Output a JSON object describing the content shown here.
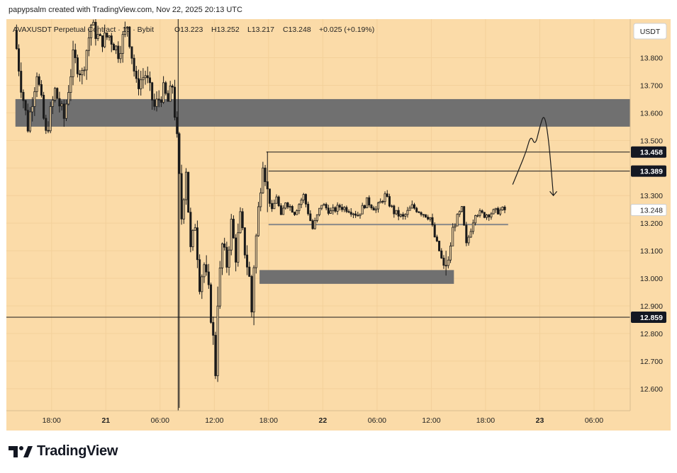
{
  "header": {
    "attribution": "papypsalm created with TradingView.com, Nov 22, 2025 20:13 UTC"
  },
  "legend": {
    "symbol": "AVAXUSDT Perpetual Contract · 15 · Bybit",
    "open": "O13.223",
    "high": "H13.252",
    "low": "L13.217",
    "close": "C13.248",
    "change": "+0.025 (+0.19%)"
  },
  "footer": {
    "brand": "TradingView",
    "logo_icon": "tradingview-logo-icon"
  },
  "colors": {
    "background": "#fbdba8",
    "candle": "#1a1a1a",
    "zone": "#707070",
    "level_line": "#8a8a8a",
    "badge_dark": "#131722",
    "badge_light": "#ffffff"
  },
  "chart_data": {
    "type": "candlestick",
    "currency_label": "USDT",
    "y_ticks": [
      12.6,
      12.7,
      12.8,
      12.9,
      13.0,
      13.1,
      13.2,
      13.3,
      13.4,
      13.5,
      13.6,
      13.7,
      13.8
    ],
    "ylim": [
      12.52,
      13.94
    ],
    "x_time_range": [
      "2025-11-20T13:00",
      "2025-11-23T10:00"
    ],
    "x_ticks": [
      {
        "label": "18:00",
        "time": "2025-11-20T18:00"
      },
      {
        "label": "21",
        "time": "2025-11-21T00:00",
        "bold": true
      },
      {
        "label": "06:00",
        "time": "2025-11-21T06:00"
      },
      {
        "label": "12:00",
        "time": "2025-11-21T12:00"
      },
      {
        "label": "18:00",
        "time": "2025-11-21T18:00"
      },
      {
        "label": "22",
        "time": "2025-11-22T00:00",
        "bold": true
      },
      {
        "label": "06:00",
        "time": "2025-11-22T06:00"
      },
      {
        "label": "12:00",
        "time": "2025-11-22T12:00"
      },
      {
        "label": "18:00",
        "time": "2025-11-22T18:00"
      },
      {
        "label": "23",
        "time": "2025-11-23T00:00",
        "bold": true
      },
      {
        "label": "06:00",
        "time": "2025-11-23T06:00"
      }
    ],
    "price_path": [
      [
        "2025-11-20T14:00",
        13.9
      ],
      [
        "2025-11-20T14:45",
        13.7
      ],
      [
        "2025-11-20T15:30",
        13.55
      ],
      [
        "2025-11-20T16:30",
        13.75
      ],
      [
        "2025-11-20T17:30",
        13.52
      ],
      [
        "2025-11-20T18:30",
        13.68
      ],
      [
        "2025-11-20T19:30",
        13.58
      ],
      [
        "2025-11-20T20:30",
        13.8
      ],
      [
        "2025-11-20T21:30",
        13.74
      ],
      [
        "2025-11-20T22:30",
        13.92
      ],
      [
        "2025-11-20T23:30",
        13.86
      ],
      [
        "2025-11-21T00:30",
        13.88
      ],
      [
        "2025-11-21T01:30",
        13.82
      ],
      [
        "2025-11-21T02:30",
        13.92
      ],
      [
        "2025-11-21T03:30",
        13.7
      ],
      [
        "2025-11-21T04:30",
        13.74
      ],
      [
        "2025-11-21T05:30",
        13.62
      ],
      [
        "2025-11-21T06:30",
        13.68
      ],
      [
        "2025-11-21T07:00",
        13.64
      ],
      [
        "2025-11-21T07:30",
        13.7
      ],
      [
        "2025-11-21T08:00",
        13.5
      ],
      [
        "2025-11-21T08:30",
        13.22
      ],
      [
        "2025-11-21T09:00",
        13.4
      ],
      [
        "2025-11-21T09:30",
        13.1
      ],
      [
        "2025-11-21T10:00",
        13.2
      ],
      [
        "2025-11-21T10:30",
        12.98
      ],
      [
        "2025-11-21T11:00",
        13.05
      ],
      [
        "2025-11-21T11:30",
        12.95
      ],
      [
        "2025-11-21T12:00",
        12.78
      ],
      [
        "2025-11-21T12:15",
        12.66
      ],
      [
        "2025-11-21T12:30",
        12.92
      ],
      [
        "2025-11-21T13:00",
        13.12
      ],
      [
        "2025-11-21T13:30",
        13.05
      ],
      [
        "2025-11-21T14:00",
        13.2
      ],
      [
        "2025-11-21T14:30",
        13.08
      ],
      [
        "2025-11-21T15:00",
        13.22
      ],
      [
        "2025-11-21T15:30",
        13.1
      ],
      [
        "2025-11-21T16:00",
        13.0
      ],
      [
        "2025-11-21T16:15",
        12.88
      ],
      [
        "2025-11-21T16:30",
        13.05
      ],
      [
        "2025-11-21T17:00",
        13.25
      ],
      [
        "2025-11-21T17:30",
        13.43
      ],
      [
        "2025-11-21T18:00",
        13.32
      ],
      [
        "2025-11-21T18:30",
        13.24
      ],
      [
        "2025-11-21T19:00",
        13.3
      ],
      [
        "2025-11-21T19:30",
        13.22
      ],
      [
        "2025-11-21T20:00",
        13.28
      ],
      [
        "2025-11-21T21:00",
        13.24
      ],
      [
        "2025-11-21T22:00",
        13.3
      ],
      [
        "2025-11-21T23:00",
        13.18
      ],
      [
        "2025-11-22T00:00",
        13.27
      ],
      [
        "2025-11-22T01:00",
        13.24
      ],
      [
        "2025-11-22T02:00",
        13.26
      ],
      [
        "2025-11-22T03:00",
        13.25
      ],
      [
        "2025-11-22T04:00",
        13.23
      ],
      [
        "2025-11-22T05:00",
        13.28
      ],
      [
        "2025-11-22T06:00",
        13.25
      ],
      [
        "2025-11-22T07:00",
        13.3
      ],
      [
        "2025-11-22T08:00",
        13.24
      ],
      [
        "2025-11-22T09:00",
        13.22
      ],
      [
        "2025-11-22T10:00",
        13.26
      ],
      [
        "2025-11-22T11:00",
        13.24
      ],
      [
        "2025-11-22T12:00",
        13.22
      ],
      [
        "2025-11-22T12:30",
        13.15
      ],
      [
        "2025-11-22T13:00",
        13.1
      ],
      [
        "2025-11-22T13:30",
        13.04
      ],
      [
        "2025-11-22T14:00",
        13.06
      ],
      [
        "2025-11-22T14:30",
        13.18
      ],
      [
        "2025-11-22T15:00",
        13.22
      ],
      [
        "2025-11-22T15:30",
        13.25
      ],
      [
        "2025-11-22T16:00",
        13.12
      ],
      [
        "2025-11-22T16:30",
        13.18
      ],
      [
        "2025-11-22T17:00",
        13.24
      ],
      [
        "2025-11-22T18:00",
        13.23
      ],
      [
        "2025-11-22T19:00",
        13.24
      ],
      [
        "2025-11-22T20:00",
        13.248
      ]
    ],
    "key_candles": [
      {
        "time": "2025-11-21T08:00",
        "high": 13.52,
        "low": 12.53
      },
      {
        "time": "2025-11-21T12:15",
        "high": 12.97,
        "low": 12.63
      },
      {
        "time": "2025-11-21T16:15",
        "high": 13.0,
        "low": 12.83
      },
      {
        "time": "2025-11-21T17:45",
        "high": 13.46,
        "low": 13.24
      },
      {
        "time": "2025-11-22T13:30",
        "high": 13.1,
        "low": 13.01
      }
    ],
    "zones": [
      {
        "from": "2025-11-20T14:00",
        "to": "2025-11-23T10:00",
        "low": 13.55,
        "high": 13.65,
        "color": "#707070"
      },
      {
        "from": "2025-11-21T17:00",
        "to": "2025-11-22T14:30",
        "low": 12.98,
        "high": 13.03,
        "color": "#707070"
      }
    ],
    "horizontal_lines": [
      {
        "price": 13.458,
        "from": "2025-11-21T17:45",
        "color": "#1a1a1a",
        "label": "13.458"
      },
      {
        "price": 13.389,
        "from": "2025-11-21T18:00",
        "color": "#1a1a1a",
        "label": "13.389"
      },
      {
        "price": 12.859,
        "from": "2025-11-20T13:00",
        "color": "#1a1a1a",
        "label": "12.859"
      },
      {
        "price": 13.195,
        "from": "2025-11-21T18:00",
        "to": "2025-11-22T20:30",
        "color": "#8a8a8a",
        "label": ""
      }
    ],
    "vertical_lines": [
      {
        "time": "2025-11-21T08:00",
        "color": "#1a1a1a"
      }
    ],
    "current_price": {
      "price": 13.248,
      "label": "13.248"
    },
    "projection_path": [
      [
        "2025-11-22T21:00",
        13.34
      ],
      [
        "2025-11-22T21:45",
        13.4
      ],
      [
        "2025-11-22T22:30",
        13.46
      ],
      [
        "2025-11-22T23:00",
        13.52
      ],
      [
        "2025-11-22T23:30",
        13.48
      ],
      [
        "2025-11-23T00:00",
        13.55
      ],
      [
        "2025-11-23T00:30",
        13.6
      ],
      [
        "2025-11-23T01:00",
        13.5
      ],
      [
        "2025-11-23T01:30",
        13.3
      ]
    ]
  }
}
